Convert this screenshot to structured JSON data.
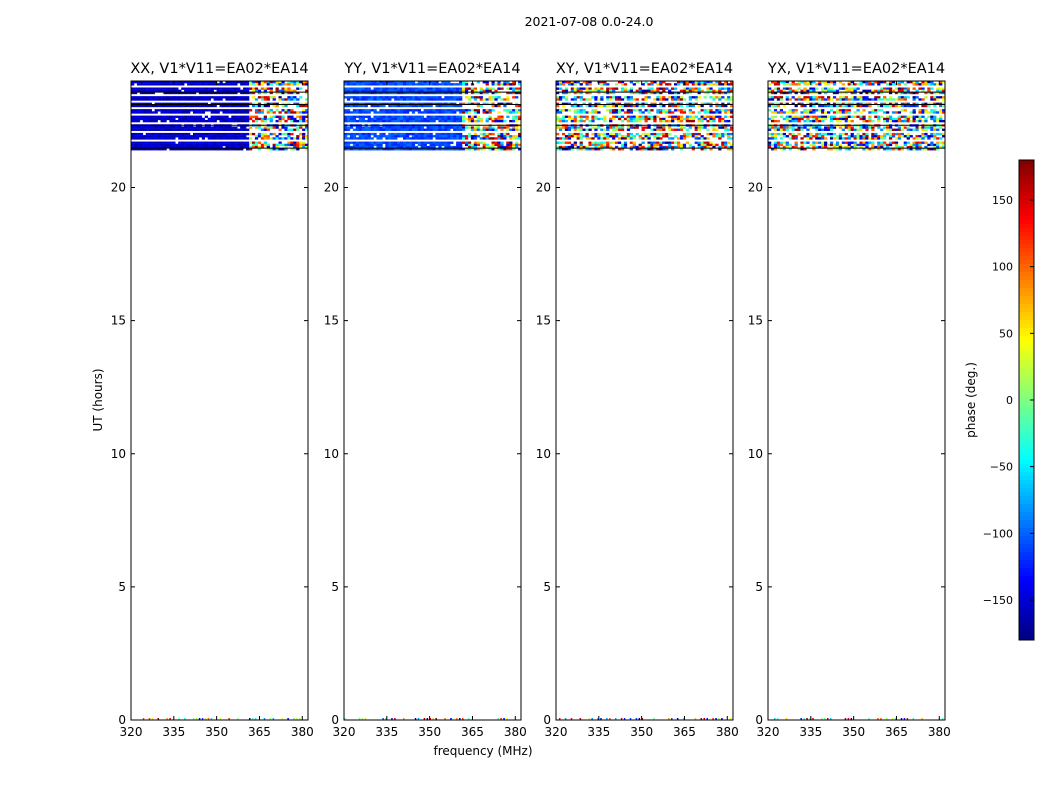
{
  "suptitle": "2021-07-08 0.0-24.0",
  "xlabel": "frequency (MHz)",
  "ylabel": "UT (hours)",
  "colorbar": {
    "label": "phase (deg.)",
    "range": [
      -180,
      180
    ],
    "ticks": [
      150,
      100,
      50,
      0,
      -50,
      -100,
      -150
    ],
    "tick_labels": [
      "150",
      "100",
      "50",
      "0",
      "−50",
      "−100",
      "−150"
    ],
    "colormap": "jet"
  },
  "chart_data": [
    {
      "type": "heatmap",
      "title": "XX, V1*V11=EA02*EA14",
      "xlim": [
        320,
        382
      ],
      "ylim": [
        0,
        24
      ],
      "xticks": [
        320,
        335,
        350,
        365,
        380
      ],
      "yticks": [
        0,
        5,
        10,
        15,
        20
      ],
      "data_rows_ut": [
        21.4,
        24.0
      ],
      "dominant_phase_deg": -155,
      "noisy_from_mhz": 361
    },
    {
      "type": "heatmap",
      "title": "YY, V1*V11=EA02*EA14",
      "xlim": [
        320,
        382
      ],
      "ylim": [
        0,
        24
      ],
      "xticks": [
        320,
        335,
        350,
        365,
        380
      ],
      "yticks": [
        0,
        5,
        10,
        15,
        20
      ],
      "data_rows_ut": [
        21.4,
        24.0
      ],
      "dominant_phase_deg": -110,
      "noisy_from_mhz": 361
    },
    {
      "type": "heatmap",
      "title": "XY, V1*V11=EA02*EA14",
      "xlim": [
        320,
        382
      ],
      "ylim": [
        0,
        24
      ],
      "xticks": [
        320,
        335,
        350,
        365,
        380
      ],
      "yticks": [
        0,
        5,
        10,
        15,
        20
      ],
      "data_rows_ut": [
        21.4,
        24.0
      ],
      "dominant_phase_deg": "random",
      "noisy_from_mhz": 320
    },
    {
      "type": "heatmap",
      "title": "YX, V1*V11=EA02*EA14",
      "xlim": [
        320,
        382
      ],
      "ylim": [
        0,
        24
      ],
      "xticks": [
        320,
        335,
        350,
        365,
        380
      ],
      "yticks": [
        0,
        5,
        10,
        15,
        20
      ],
      "data_rows_ut": [
        21.4,
        24.0
      ],
      "dominant_phase_deg": "random",
      "noisy_from_mhz": 320
    }
  ]
}
